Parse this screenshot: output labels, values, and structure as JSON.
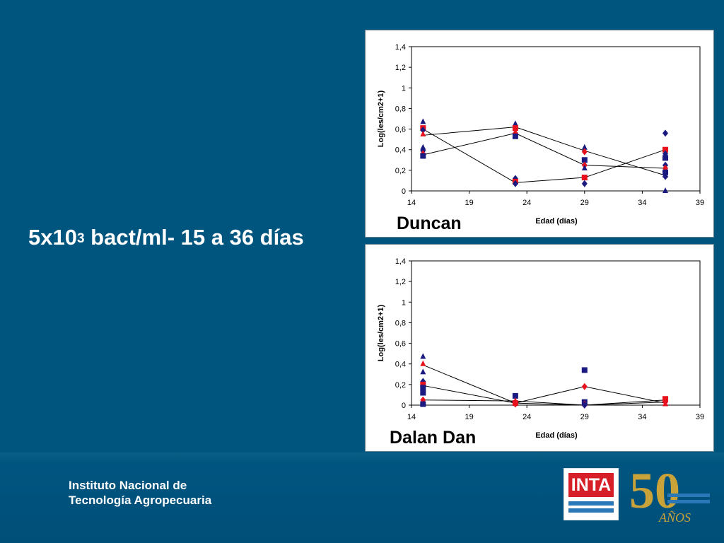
{
  "slide": {
    "title_base": "5x10",
    "title_sup": "3",
    "title_rest": " bact/ml- 15 a 36 días"
  },
  "footer": {
    "institute_line1": "Instituto Nacional de",
    "institute_line2": "Tecnología Agropecuaria",
    "inta_logo_text": "INTA",
    "anniversary_number": "50",
    "anniversary_word": "AÑOS",
    "colors": {
      "band": "#004f78",
      "inta_red": "#d61f26",
      "inta_blue": "#2b78b8",
      "gold": "#c9a23a"
    }
  },
  "chart_data": [
    {
      "type": "scatter",
      "title": "Duncan",
      "xlabel": "Edad (días)",
      "ylabel": "Log(les/cm2+1)",
      "xlim": [
        14,
        39
      ],
      "ylim": [
        0,
        1.4
      ],
      "xticks": [
        "14",
        "19",
        "24",
        "29",
        "34",
        "39"
      ],
      "yticks": [
        "0",
        "0,2",
        "0,4",
        "0,6",
        "0,8",
        "1",
        "1,2",
        "1,4"
      ],
      "grid": false,
      "legend": "none",
      "series_colors": {
        "navy": "#1a1a80",
        "red": "#e8101c",
        "line": "#000000"
      },
      "lines": [
        {
          "x": [
            15,
            23,
            29,
            36
          ],
          "y": [
            0.54,
            0.62,
            0.39,
            0.15
          ]
        },
        {
          "x": [
            15,
            23,
            29,
            36
          ],
          "y": [
            0.35,
            0.56,
            0.25,
            0.22
          ]
        },
        {
          "x": [
            15,
            23,
            29,
            36
          ],
          "y": [
            0.6,
            0.08,
            0.13,
            0.4
          ]
        }
      ],
      "points": [
        {
          "x": 15,
          "y": 0.67,
          "marker": "triangle",
          "color": "navy"
        },
        {
          "x": 15,
          "y": 0.61,
          "marker": "square",
          "color": "red"
        },
        {
          "x": 15,
          "y": 0.59,
          "marker": "diamond",
          "color": "navy"
        },
        {
          "x": 15,
          "y": 0.55,
          "marker": "triangle",
          "color": "red"
        },
        {
          "x": 15,
          "y": 0.42,
          "marker": "triangle",
          "color": "navy"
        },
        {
          "x": 15,
          "y": 0.39,
          "marker": "diamond",
          "color": "navy"
        },
        {
          "x": 15,
          "y": 0.36,
          "marker": "diamond",
          "color": "red"
        },
        {
          "x": 15,
          "y": 0.34,
          "marker": "square",
          "color": "navy"
        },
        {
          "x": 23,
          "y": 0.65,
          "marker": "triangle",
          "color": "navy"
        },
        {
          "x": 23,
          "y": 0.61,
          "marker": "square",
          "color": "red"
        },
        {
          "x": 23,
          "y": 0.56,
          "marker": "diamond",
          "color": "red"
        },
        {
          "x": 23,
          "y": 0.53,
          "marker": "square",
          "color": "navy"
        },
        {
          "x": 23,
          "y": 0.12,
          "marker": "diamond",
          "color": "navy"
        },
        {
          "x": 23,
          "y": 0.09,
          "marker": "square",
          "color": "red"
        },
        {
          "x": 23,
          "y": 0.07,
          "marker": "diamond",
          "color": "navy"
        },
        {
          "x": 29,
          "y": 0.42,
          "marker": "triangle",
          "color": "navy"
        },
        {
          "x": 29,
          "y": 0.38,
          "marker": "diamond",
          "color": "red"
        },
        {
          "x": 29,
          "y": 0.3,
          "marker": "square",
          "color": "navy"
        },
        {
          "x": 29,
          "y": 0.25,
          "marker": "diamond",
          "color": "red"
        },
        {
          "x": 29,
          "y": 0.22,
          "marker": "triangle",
          "color": "navy"
        },
        {
          "x": 29,
          "y": 0.13,
          "marker": "square",
          "color": "red"
        },
        {
          "x": 29,
          "y": 0.07,
          "marker": "diamond",
          "color": "navy"
        },
        {
          "x": 36,
          "y": 0.56,
          "marker": "diamond",
          "color": "navy"
        },
        {
          "x": 36,
          "y": 0.4,
          "marker": "square",
          "color": "red"
        },
        {
          "x": 36,
          "y": 0.36,
          "marker": "diamond",
          "color": "navy"
        },
        {
          "x": 36,
          "y": 0.32,
          "marker": "square",
          "color": "navy"
        },
        {
          "x": 36,
          "y": 0.25,
          "marker": "diamond",
          "color": "navy"
        },
        {
          "x": 36,
          "y": 0.22,
          "marker": "diamond",
          "color": "red"
        },
        {
          "x": 36,
          "y": 0.18,
          "marker": "square",
          "color": "navy"
        },
        {
          "x": 36,
          "y": 0.15,
          "marker": "triangle",
          "color": "navy"
        },
        {
          "x": 36,
          "y": 0.14,
          "marker": "diamond",
          "color": "navy"
        },
        {
          "x": 36,
          "y": 0.0,
          "marker": "triangle",
          "color": "navy"
        }
      ]
    },
    {
      "type": "scatter",
      "title": "Dalan Dan",
      "xlabel": "Edad (días)",
      "ylabel": "Log(les/cm2+1)",
      "xlim": [
        14,
        39
      ],
      "ylim": [
        0,
        1.4
      ],
      "xticks": [
        "14",
        "19",
        "24",
        "29",
        "34",
        "39"
      ],
      "yticks": [
        "0",
        "0,2",
        "0,4",
        "0,6",
        "0,8",
        "1",
        "1,2",
        "1,4"
      ],
      "grid": false,
      "legend": "none",
      "series_colors": {
        "navy": "#1a1a80",
        "red": "#e8101c",
        "line": "#000000"
      },
      "lines": [
        {
          "x": [
            15,
            23,
            29,
            36
          ],
          "y": [
            0.39,
            0.02,
            0.0,
            0.03
          ]
        },
        {
          "x": [
            15,
            23,
            29,
            36
          ],
          "y": [
            0.19,
            0.02,
            0.18,
            0.02
          ]
        },
        {
          "x": [
            15,
            23,
            29,
            36
          ],
          "y": [
            0.05,
            0.04,
            0.0,
            0.05
          ]
        }
      ],
      "points": [
        {
          "x": 15,
          "y": 0.47,
          "marker": "triangle",
          "color": "navy"
        },
        {
          "x": 15,
          "y": 0.4,
          "marker": "triangle",
          "color": "red"
        },
        {
          "x": 15,
          "y": 0.32,
          "marker": "triangle",
          "color": "navy"
        },
        {
          "x": 15,
          "y": 0.23,
          "marker": "diamond",
          "color": "navy"
        },
        {
          "x": 15,
          "y": 0.2,
          "marker": "square",
          "color": "red"
        },
        {
          "x": 15,
          "y": 0.17,
          "marker": "square",
          "color": "navy"
        },
        {
          "x": 15,
          "y": 0.12,
          "marker": "square",
          "color": "navy"
        },
        {
          "x": 15,
          "y": 0.05,
          "marker": "diamond",
          "color": "red"
        },
        {
          "x": 15,
          "y": 0.01,
          "marker": "square",
          "color": "navy"
        },
        {
          "x": 23,
          "y": 0.09,
          "marker": "square",
          "color": "navy"
        },
        {
          "x": 23,
          "y": 0.04,
          "marker": "triangle",
          "color": "red"
        },
        {
          "x": 23,
          "y": 0.02,
          "marker": "square",
          "color": "red"
        },
        {
          "x": 23,
          "y": 0.01,
          "marker": "diamond",
          "color": "red"
        },
        {
          "x": 29,
          "y": 0.34,
          "marker": "square",
          "color": "navy"
        },
        {
          "x": 29,
          "y": 0.18,
          "marker": "diamond",
          "color": "red"
        },
        {
          "x": 29,
          "y": 0.03,
          "marker": "square",
          "color": "navy"
        },
        {
          "x": 29,
          "y": 0.01,
          "marker": "triangle",
          "color": "red"
        },
        {
          "x": 29,
          "y": 0.0,
          "marker": "diamond",
          "color": "navy"
        },
        {
          "x": 36,
          "y": 0.06,
          "marker": "square",
          "color": "red"
        },
        {
          "x": 36,
          "y": 0.03,
          "marker": "diamond",
          "color": "red"
        },
        {
          "x": 36,
          "y": 0.01,
          "marker": "triangle",
          "color": "red"
        }
      ]
    }
  ]
}
